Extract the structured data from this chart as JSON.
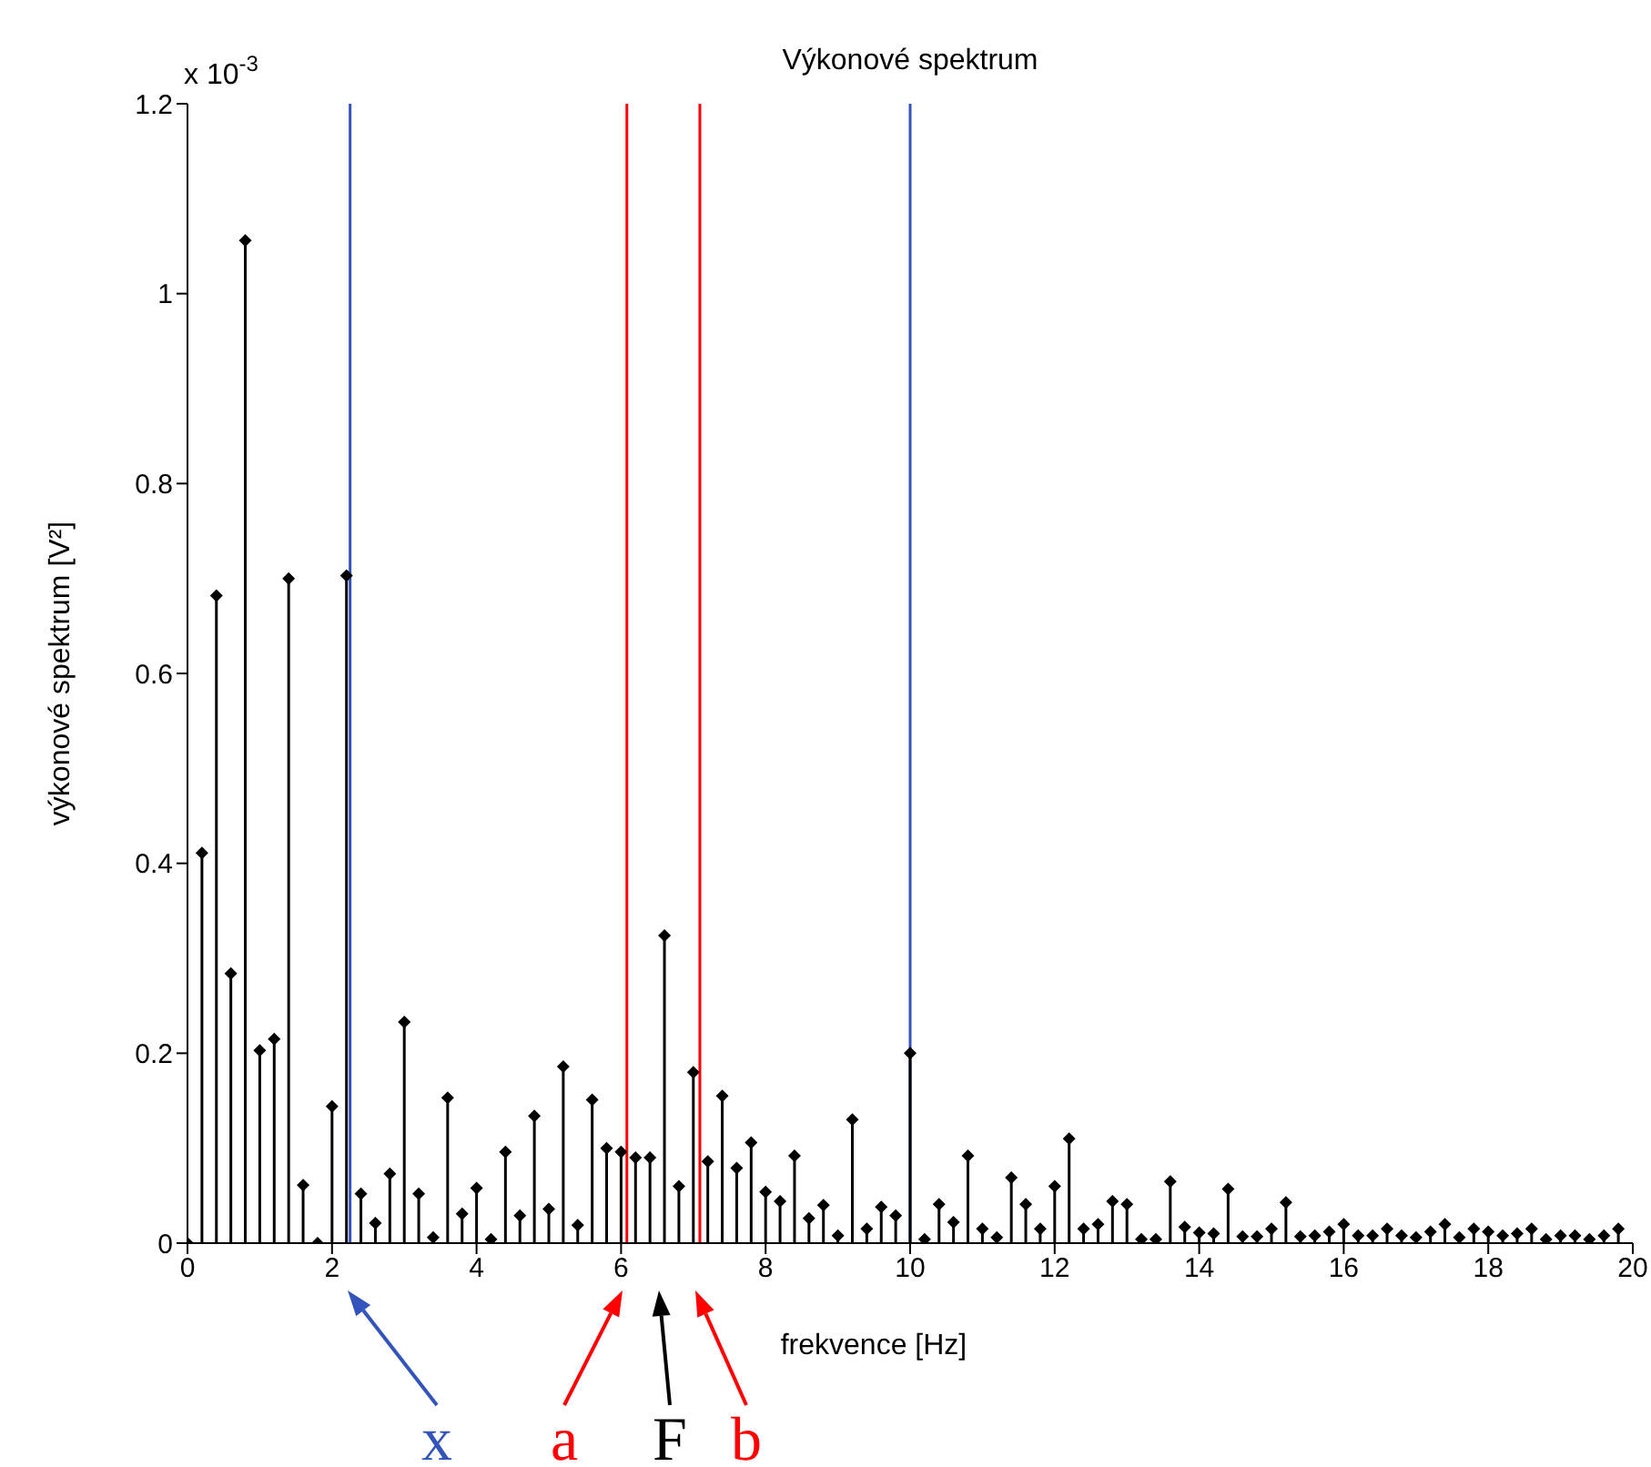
{
  "chart_data": {
    "type": "lollipop",
    "title": "Výkonové spektrum",
    "xlabel": "frekvence [Hz]",
    "ylabel": "výkonové spektrum [V²]",
    "x": [
      0,
      0.2,
      0.4,
      0.6,
      0.8,
      1,
      1.2,
      1.4,
      1.6,
      1.8,
      2,
      2.2,
      2.4,
      2.6,
      2.8,
      3,
      3.2,
      3.4,
      3.6,
      3.8,
      4,
      4.2,
      4.4,
      4.6,
      4.8,
      5,
      5.2,
      5.4,
      5.6,
      5.8,
      6,
      6.2,
      6.4,
      6.6,
      6.8,
      7,
      7.2,
      7.4,
      7.6,
      7.8,
      8,
      8.2,
      8.4,
      8.6,
      8.8,
      9,
      9.2,
      9.4,
      9.6,
      9.8,
      10,
      10.2,
      10.4,
      10.6,
      10.8,
      11,
      11.2,
      11.4,
      11.6,
      11.8,
      12,
      12.2,
      12.4,
      12.6,
      12.8,
      13,
      13.2,
      13.4,
      13.6,
      13.8,
      14,
      14.2,
      14.4,
      14.6,
      14.8,
      15,
      15.2,
      15.4,
      15.6,
      15.8,
      16,
      16.2,
      16.4,
      16.6,
      16.8,
      17,
      17.2,
      17.4,
      17.6,
      17.8,
      18,
      18.2,
      18.4,
      18.6,
      18.8,
      19,
      19.2,
      19.4,
      19.6,
      19.8
    ],
    "values": [
      0,
      0.411,
      0.682,
      0.284,
      1.056,
      0.203,
      0.215,
      0.7,
      0.061,
      0,
      0.144,
      0.703,
      0.052,
      0.021,
      0.073,
      0.233,
      0.052,
      0.006,
      0.153,
      0.031,
      0.058,
      0.004,
      0.096,
      0.029,
      0.134,
      0.036,
      0.186,
      0.019,
      0.151,
      0.1,
      0.096,
      0.09,
      0.09,
      0.324,
      0.06,
      0.18,
      0.086,
      0.155,
      0.079,
      0.106,
      0.054,
      0.044,
      0.092,
      0.026,
      0.04,
      0.008,
      0.13,
      0.015,
      0.038,
      0.029,
      0.2,
      0.004,
      0.041,
      0.022,
      0.092,
      0.015,
      0.006,
      0.069,
      0.041,
      0.015,
      0.06,
      0.11,
      0.015,
      0.02,
      0.044,
      0.041,
      0.004,
      0.004,
      0.065,
      0.017,
      0.011,
      0.01,
      0.057,
      0.007,
      0.007,
      0.015,
      0.043,
      0.007,
      0.008,
      0.012,
      0.02,
      0.008,
      0.008,
      0.015,
      0.008,
      0.006,
      0.012,
      0.02,
      0.006,
      0.015,
      0.012,
      0.008,
      0.01,
      0.015,
      0.004,
      0.008,
      0.008,
      0.004,
      0.008,
      0.015
    ],
    "color": "#000000",
    "marker": "diamond",
    "xlim": [
      0,
      20
    ],
    "xticks": [
      0,
      2,
      4,
      6,
      8,
      10,
      12,
      14,
      16,
      18,
      20
    ],
    "ylim": [
      0,
      1.2
    ],
    "yticks": [
      0,
      0.2,
      0.4,
      0.6,
      0.8,
      1,
      1.2
    ],
    "grid": false,
    "ref_lines": [
      {
        "axis": "x",
        "value": 2.25,
        "color": "#3355bb"
      },
      {
        "axis": "x",
        "value": 6.08,
        "color": "#ff0000"
      },
      {
        "axis": "x",
        "value": 7.09,
        "color": "#ff0000"
      },
      {
        "axis": "x",
        "value": 10,
        "color": "#3355bb"
      }
    ],
    "annotations": [
      "x 10$^{-3}$",
      "x",
      "a",
      "F",
      "b"
    ]
  }
}
